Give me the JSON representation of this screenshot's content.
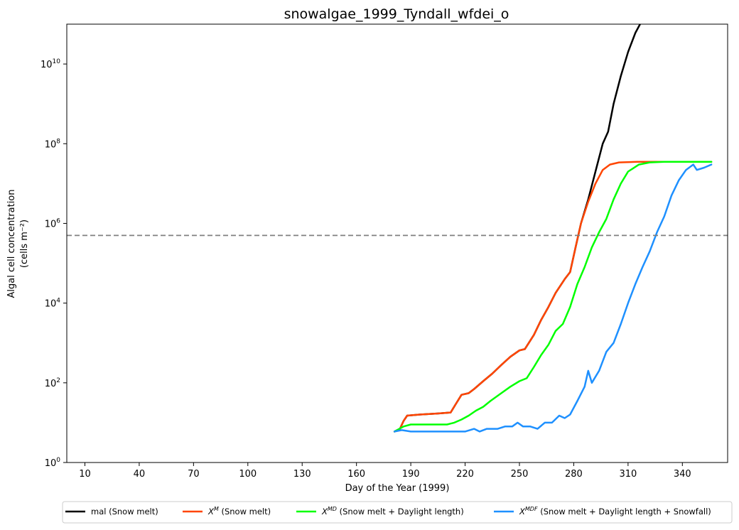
{
  "chart_data": {
    "type": "line",
    "title": "snowalgae_1999_Tyndall_wfdei_o",
    "xlabel": "Day of the Year (1999)",
    "ylabel_line1": "Algal cell concentration",
    "ylabel_line2": "(cells m⁻²)",
    "xlim": [
      0,
      365
    ],
    "ylim_log10": [
      0,
      11
    ],
    "yscale": "log",
    "grid": false,
    "legend_placement": "bottom, outside plot",
    "x_ticks": [
      10,
      40,
      70,
      100,
      130,
      160,
      190,
      220,
      250,
      280,
      310,
      340
    ],
    "y_ticks_exponent": [
      0,
      2,
      4,
      6,
      8,
      10
    ],
    "y_tick_base": "10",
    "threshold": {
      "y": 500000,
      "color": "#808080",
      "style": "dashed"
    },
    "series": [
      {
        "name": "mal (Snow melt)",
        "label_base": "",
        "label_sup": "",
        "label_rest": "mal (Snow melt)",
        "color": "#000000",
        "points": [
          [
            181,
            6
          ],
          [
            184,
            7
          ],
          [
            186,
            11
          ],
          [
            188,
            15
          ],
          [
            195,
            16
          ],
          [
            205,
            17
          ],
          [
            212,
            18
          ],
          [
            215,
            30
          ],
          [
            218,
            50
          ],
          [
            222,
            55
          ],
          [
            225,
            70
          ],
          [
            230,
            110
          ],
          [
            235,
            170
          ],
          [
            240,
            280
          ],
          [
            245,
            450
          ],
          [
            250,
            650
          ],
          [
            253,
            700
          ],
          [
            258,
            1600
          ],
          [
            262,
            3800
          ],
          [
            266,
            8000
          ],
          [
            270,
            18000
          ],
          [
            275,
            40000
          ],
          [
            278,
            60000
          ],
          [
            281,
            250000
          ],
          [
            284,
            1000000
          ],
          [
            288,
            4000000
          ],
          [
            292,
            20000000
          ],
          [
            296,
            100000000
          ],
          [
            299,
            200000000
          ],
          [
            302,
            1000000000
          ],
          [
            306,
            5000000000
          ],
          [
            310,
            20000000000
          ],
          [
            314,
            60000000000
          ],
          [
            318,
            130000000000
          ]
        ]
      },
      {
        "name": "X^M (Snow melt)",
        "label_base": "X",
        "label_sup": "M",
        "label_rest": " (Snow melt)",
        "color": "#ff4500",
        "points": [
          [
            181,
            6
          ],
          [
            184,
            7
          ],
          [
            186,
            11
          ],
          [
            188,
            15
          ],
          [
            195,
            16
          ],
          [
            205,
            17
          ],
          [
            212,
            18
          ],
          [
            215,
            30
          ],
          [
            218,
            50
          ],
          [
            222,
            55
          ],
          [
            225,
            70
          ],
          [
            230,
            110
          ],
          [
            235,
            170
          ],
          [
            240,
            280
          ],
          [
            245,
            450
          ],
          [
            250,
            650
          ],
          [
            253,
            700
          ],
          [
            258,
            1600
          ],
          [
            262,
            3800
          ],
          [
            266,
            8000
          ],
          [
            270,
            18000
          ],
          [
            275,
            40000
          ],
          [
            278,
            60000
          ],
          [
            281,
            250000
          ],
          [
            284,
            1000000
          ],
          [
            288,
            3500000
          ],
          [
            292,
            10000000
          ],
          [
            296,
            22000000
          ],
          [
            300,
            30000000
          ],
          [
            305,
            34000000
          ],
          [
            315,
            35000000
          ],
          [
            340,
            35000000
          ],
          [
            356,
            35000000
          ]
        ]
      },
      {
        "name": "X^MD (Snow melt + Daylight length)",
        "label_base": "X",
        "label_sup": "MD",
        "label_rest": " (Snow melt + Daylight length)",
        "color": "#00ff00",
        "points": [
          [
            181,
            6
          ],
          [
            186,
            8
          ],
          [
            190,
            9
          ],
          [
            200,
            9
          ],
          [
            210,
            9
          ],
          [
            214,
            10
          ],
          [
            218,
            12
          ],
          [
            222,
            15
          ],
          [
            226,
            20
          ],
          [
            230,
            25
          ],
          [
            234,
            35
          ],
          [
            240,
            55
          ],
          [
            245,
            80
          ],
          [
            250,
            110
          ],
          [
            254,
            130
          ],
          [
            258,
            250
          ],
          [
            262,
            500
          ],
          [
            266,
            900
          ],
          [
            270,
            2000
          ],
          [
            274,
            3000
          ],
          [
            278,
            8000
          ],
          [
            282,
            30000
          ],
          [
            286,
            80000
          ],
          [
            290,
            250000
          ],
          [
            294,
            600000
          ],
          [
            298,
            1300000
          ],
          [
            302,
            4000000
          ],
          [
            306,
            10000000
          ],
          [
            310,
            20000000
          ],
          [
            316,
            30000000
          ],
          [
            322,
            34000000
          ],
          [
            330,
            35000000
          ],
          [
            356,
            35000000
          ]
        ]
      },
      {
        "name": "X^MDF (Snow melt + Daylight length + Snowfall)",
        "label_base": "X",
        "label_sup": "MDF",
        "label_rest": " (Snow melt + Daylight length + Snowfall)",
        "color": "#1e90ff",
        "points": [
          [
            181,
            6
          ],
          [
            185,
            6.5
          ],
          [
            190,
            6
          ],
          [
            200,
            6
          ],
          [
            210,
            6
          ],
          [
            220,
            6
          ],
          [
            225,
            7
          ],
          [
            228,
            6
          ],
          [
            232,
            7
          ],
          [
            238,
            7
          ],
          [
            242,
            8
          ],
          [
            246,
            8
          ],
          [
            249,
            10
          ],
          [
            252,
            8
          ],
          [
            256,
            8
          ],
          [
            260,
            7
          ],
          [
            264,
            10
          ],
          [
            268,
            10
          ],
          [
            272,
            15
          ],
          [
            275,
            13
          ],
          [
            278,
            16
          ],
          [
            282,
            35
          ],
          [
            286,
            80
          ],
          [
            288,
            200
          ],
          [
            290,
            100
          ],
          [
            294,
            200
          ],
          [
            298,
            600
          ],
          [
            302,
            1000
          ],
          [
            306,
            3000
          ],
          [
            310,
            10000
          ],
          [
            314,
            30000
          ],
          [
            318,
            80000
          ],
          [
            322,
            200000
          ],
          [
            326,
            600000
          ],
          [
            330,
            1500000
          ],
          [
            334,
            5000000
          ],
          [
            338,
            12000000
          ],
          [
            342,
            22000000
          ],
          [
            346,
            30000000
          ],
          [
            348,
            22000000
          ],
          [
            352,
            25000000
          ],
          [
            356,
            30000000
          ]
        ]
      }
    ]
  }
}
